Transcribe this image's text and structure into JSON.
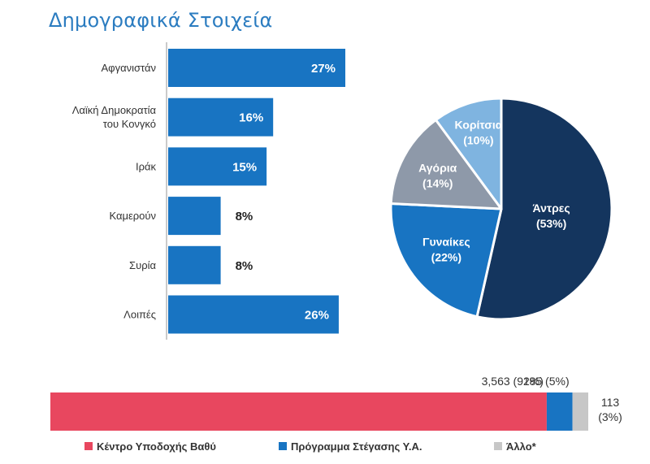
{
  "page": {
    "title": "Δημογραφικά Στοιχεία"
  },
  "chart_data": [
    {
      "type": "bar",
      "orientation": "horizontal",
      "categories": [
        [
          "Αφγανιστάν"
        ],
        [
          "Λαϊκή Δημοκρατία",
          "του Κονγκό"
        ],
        [
          "Ιράκ"
        ],
        [
          "Καμερούν"
        ],
        [
          "Συρία"
        ],
        [
          "Λοιπές"
        ]
      ],
      "values": [
        27,
        16,
        15,
        8,
        8,
        26
      ],
      "value_labels": [
        "27%",
        "16%",
        "15%",
        "8%",
        "8%",
        "26%"
      ],
      "xlim": [
        0,
        27
      ],
      "color": "#1874c2"
    },
    {
      "type": "pie",
      "slices": [
        {
          "label": "Άντρες",
          "value_label": "(53%)",
          "value": 53,
          "color": "#14355e",
          "text_color": "#ffffff"
        },
        {
          "label": "Γυναίκες",
          "value_label": "(22%)",
          "value": 22,
          "color": "#1874c2",
          "text_color": "#ffffff"
        },
        {
          "label": "Αγόρια",
          "value_label": "(14%)",
          "value": 14,
          "color": "#8e99a9",
          "text_color": "#ffffff"
        },
        {
          "label": "Κορίτσια",
          "value_label": "(10%)",
          "value": 10,
          "color": "#7fb4e0",
          "text_color": "#ffffff"
        }
      ],
      "start": "top",
      "direction": "clockwise"
    },
    {
      "type": "bar",
      "orientation": "stacked-horizontal",
      "series": [
        {
          "name": "Κέντρο Υποδοχής Βαθύ",
          "value": 3563,
          "label": "3,563  (92%)",
          "color": "#e8475f"
        },
        {
          "name": "Πρόγραμμα Στέγασης Υ.Α.",
          "value": 185,
          "label": "185  (5%)",
          "color": "#1874c2"
        },
        {
          "name": "Άλλο*",
          "value": 113,
          "label": [
            "113",
            "(3%)"
          ],
          "color": "#c7c7c7"
        }
      ],
      "legend_position": "bottom"
    }
  ]
}
